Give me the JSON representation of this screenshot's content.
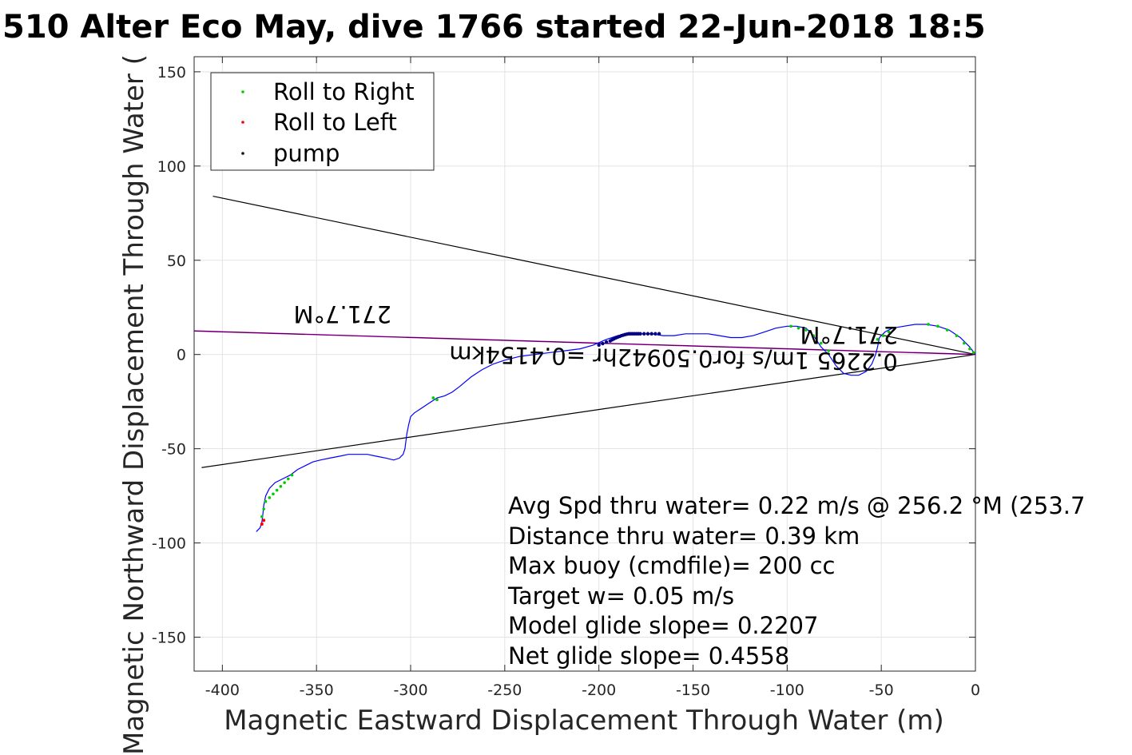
{
  "chart_data": {
    "type": "line",
    "title": "510 Alter Eco May, dive 1766 started 22-Jun-2018 18:5",
    "xlabel": "Magnetic Eastward Displacement Through Water (m)",
    "ylabel": "Magnetic Northward Displacement Through Water (",
    "xlim": [
      -415,
      0
    ],
    "ylim": [
      -168,
      158
    ],
    "xticks": [
      -400,
      -350,
      -300,
      -250,
      -200,
      -150,
      -100,
      -50,
      0
    ],
    "yticks": [
      -150,
      -100,
      -50,
      0,
      50,
      100,
      150
    ],
    "grid": true,
    "legend_position": "top-left",
    "legend": [
      "Roll to Right",
      "Roll to Left",
      "pump"
    ],
    "colors": {
      "track": "#0000ff",
      "roll_right": "#00cc00",
      "roll_left": "#ff0000",
      "pump": "#000080",
      "heading_line": "#cc00cc",
      "envelope": "#000000"
    },
    "track": {
      "x": [
        0,
        -3,
        -8,
        -14,
        -20,
        -26,
        -32,
        -38,
        -44,
        -48,
        -51,
        -52,
        -53,
        -55,
        -58,
        -62,
        -66,
        -70,
        -74,
        -78,
        -82,
        -86,
        -90,
        -95,
        -100,
        -106,
        -112,
        -118,
        -124,
        -130,
        -136,
        -142,
        -148,
        -154,
        -160,
        -166,
        -172,
        -178,
        -184,
        -190,
        -196,
        -203,
        -210,
        -218,
        -226,
        -234,
        -242,
        -250,
        -256,
        -262,
        -268,
        -274,
        -278,
        -282,
        -286,
        -289,
        -292,
        -295,
        -298,
        -300,
        -301,
        -302,
        -302.5,
        -303,
        -304,
        -306,
        -309,
        -313,
        -318,
        -323,
        -328,
        -333,
        -338,
        -343,
        -348,
        -352,
        -356,
        -360,
        -364,
        -368,
        -372,
        -375,
        -377,
        -378,
        -378.5,
        -379,
        -380,
        -382
      ],
      "y": [
        0,
        4,
        9,
        13,
        15,
        16,
        16,
        15,
        14,
        12,
        9,
        4,
        0,
        -5,
        -9,
        -11,
        -11,
        -10,
        -6,
        0,
        4,
        10,
        14,
        15,
        15,
        14,
        12,
        10,
        9,
        9,
        10,
        11,
        11,
        11,
        10,
        10,
        11,
        11,
        11,
        10,
        8,
        5,
        3,
        2,
        1,
        0,
        -1,
        -3,
        -5,
        -8,
        -12,
        -17,
        -20,
        -22,
        -23,
        -25,
        -27,
        -29,
        -31,
        -33,
        -37,
        -42,
        -46,
        -50,
        -53,
        -55,
        -56,
        -55,
        -54,
        -53,
        -53,
        -53,
        -54,
        -55,
        -56,
        -57,
        -59,
        -61,
        -64,
        -66,
        -68,
        -71,
        -75,
        -80,
        -85,
        -89,
        -92,
        -94
      ]
    },
    "roll_right_points": {
      "x": [
        -1,
        -3,
        -6,
        -10,
        -15,
        -20,
        -25,
        -46,
        -49,
        -52,
        -78,
        -82,
        -86,
        -90,
        -94,
        -98,
        -286,
        -288,
        -363,
        -365,
        -367,
        -369,
        -371,
        -373,
        -375,
        -377,
        -378,
        -379
      ],
      "y": [
        1,
        3,
        6,
        10,
        13,
        15,
        16,
        12,
        10,
        8,
        2,
        6,
        10,
        13,
        14,
        15,
        -24,
        -23,
        -64,
        -66,
        -68,
        -70,
        -72,
        -74,
        -76,
        -78,
        -82,
        -86
      ]
    },
    "roll_left_points": {
      "x": [
        -378,
        -379
      ],
      "y": [
        -88,
        -90
      ]
    },
    "pump_points": {
      "x": [
        -168,
        -170,
        -172,
        -174,
        -176,
        -178,
        -179,
        -180,
        -181,
        -182,
        -183,
        -184,
        -185,
        -186,
        -187,
        -188,
        -189,
        -190,
        -191,
        -192,
        -193,
        -194,
        -196,
        -198,
        -200
      ],
      "y": [
        11,
        11,
        11,
        11,
        11,
        11,
        11,
        11,
        11,
        11,
        11,
        11,
        10.8,
        10.6,
        10.3,
        10,
        9.6,
        9.2,
        8.8,
        8.3,
        7.8,
        7.2,
        6.6,
        5.8,
        5
      ]
    },
    "heading_line": {
      "x": [
        0,
        -415
      ],
      "y": [
        0,
        12.5
      ]
    },
    "envelope_lines": [
      {
        "x": [
          0,
          -405
        ],
        "y": [
          0,
          84
        ]
      },
      {
        "x": [
          0,
          -411
        ],
        "y": [
          0,
          -60
        ]
      }
    ],
    "annotations": {
      "heading_left": "271.7°M",
      "heading_right": "271.7°M",
      "speed_line": "0.2265 1m/s for0.50942hr =0.4154km"
    },
    "stats": [
      "Avg Spd thru water=  0.22 m/s @ 256.2 °M (253.7",
      "Distance thru water=  0.39 km",
      "Max buoy (cmdfile)= 200 cc",
      "Target w= 0.05 m/s",
      "Model glide slope= 0.2207",
      "Net glide slope= 0.4558"
    ]
  }
}
